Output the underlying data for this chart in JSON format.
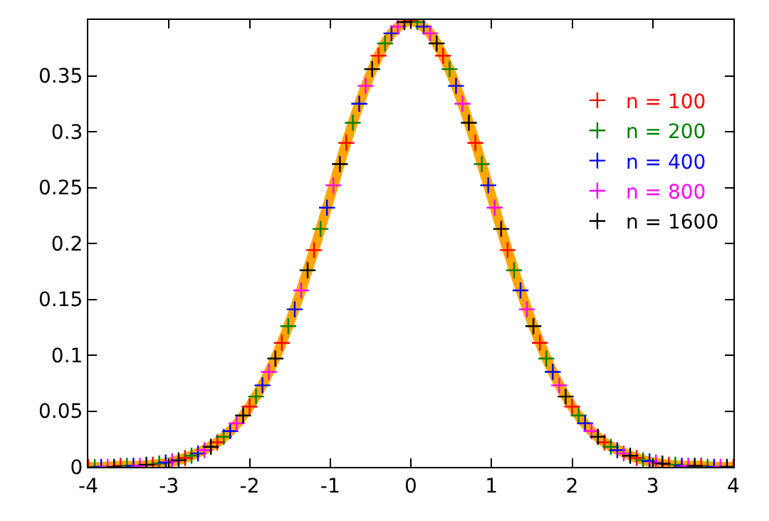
{
  "chart_data": {
    "type": "scatter",
    "x": [
      -4,
      -3.8,
      -3.6,
      -3.4,
      -3.2,
      -3,
      -2.8,
      -2.6,
      -2.4,
      -2.2,
      -2,
      -1.8,
      -1.6,
      -1.4,
      -1.2,
      -1,
      -0.8,
      -0.6,
      -0.4,
      -0.2,
      0,
      0.2,
      0.4,
      0.6,
      0.8,
      1,
      1.2,
      1.4,
      1.6,
      1.8,
      2,
      2.2,
      2.4,
      2.6,
      2.8,
      3,
      3.2,
      3.4,
      3.6,
      3.8,
      4
    ],
    "series": [
      {
        "type": "line",
        "marker": "none",
        "color": "#ffa500",
        "values": [
          0,
          0,
          0.001,
          0.001,
          0.002,
          0.004,
          0.008,
          0.014,
          0.022,
          0.035,
          0.054,
          0.079,
          0.111,
          0.15,
          0.194,
          0.242,
          0.29,
          0.333,
          0.368,
          0.391,
          0.399,
          0.391,
          0.368,
          0.333,
          0.29,
          0.242,
          0.194,
          0.15,
          0.111,
          0.079,
          0.054,
          0.035,
          0.022,
          0.014,
          0.008,
          0.004,
          0.002,
          0.001,
          0.001,
          0,
          0
        ]
      },
      {
        "name": "n = 100",
        "color": "#ff0000",
        "x": [
          -4,
          -3.6,
          -3.2,
          -2.8,
          -2.4,
          -2,
          -1.6,
          -1.2,
          -0.8,
          -0.4,
          0,
          0.4,
          0.8,
          1.2,
          1.6,
          2,
          2.4,
          2.8,
          3.2,
          3.6,
          4
        ],
        "values": [
          0,
          0.001,
          0.002,
          0.008,
          0.022,
          0.054,
          0.111,
          0.194,
          0.29,
          0.368,
          0.399,
          0.368,
          0.29,
          0.194,
          0.111,
          0.054,
          0.022,
          0.008,
          0.002,
          0.001,
          0
        ]
      },
      {
        "name": "n = 200",
        "color": "#008000",
        "x": [
          -3.92,
          -3.52,
          -3.12,
          -2.72,
          -2.32,
          -1.92,
          -1.52,
          -1.12,
          -0.72,
          -0.32,
          0.08,
          0.48,
          0.88,
          1.28,
          1.68,
          2.08,
          2.48,
          2.88,
          3.28,
          3.68
        ],
        "values": [
          0,
          0.001,
          0.003,
          0.01,
          0.027,
          0.063,
          0.126,
          0.213,
          0.308,
          0.379,
          0.398,
          0.356,
          0.271,
          0.176,
          0.097,
          0.046,
          0.018,
          0.006,
          0.002,
          0
        ]
      },
      {
        "name": "n = 400",
        "color": "#0000ff",
        "x": [
          -3.84,
          -3.44,
          -3.04,
          -2.64,
          -2.24,
          -1.84,
          -1.44,
          -1.04,
          -0.64,
          -0.24,
          0.16,
          0.56,
          0.96,
          1.36,
          1.76,
          2.16,
          2.56,
          2.96,
          3.36,
          3.76
        ],
        "values": [
          0,
          0.001,
          0.004,
          0.012,
          0.032,
          0.073,
          0.141,
          0.232,
          0.325,
          0.388,
          0.394,
          0.341,
          0.252,
          0.158,
          0.085,
          0.039,
          0.015,
          0.005,
          0.001,
          0
        ]
      },
      {
        "name": "n = 800",
        "color": "#ff00ff",
        "x": [
          -3.76,
          -3.36,
          -2.96,
          -2.56,
          -2.16,
          -1.76,
          -1.36,
          -0.96,
          -0.56,
          -0.16,
          0.24,
          0.64,
          1.04,
          1.44,
          1.84,
          2.24,
          2.64,
          3.04,
          3.44,
          3.84
        ],
        "values": [
          0,
          0.001,
          0.005,
          0.015,
          0.039,
          0.085,
          0.158,
          0.252,
          0.341,
          0.394,
          0.388,
          0.325,
          0.232,
          0.141,
          0.073,
          0.032,
          0.012,
          0.004,
          0.001,
          0
        ]
      },
      {
        "name": "n = 1600",
        "color": "#000000",
        "x": [
          -3.68,
          -3.28,
          -2.88,
          -2.48,
          -2.08,
          -1.68,
          -1.28,
          -0.88,
          -0.48,
          -0.08,
          0.32,
          0.72,
          1.12,
          1.52,
          1.92,
          2.32,
          2.72,
          3.12,
          3.52,
          3.92
        ],
        "values": [
          0,
          0.002,
          0.006,
          0.018,
          0.046,
          0.097,
          0.176,
          0.271,
          0.356,
          0.398,
          0.379,
          0.308,
          0.213,
          0.126,
          0.063,
          0.027,
          0.01,
          0.003,
          0.001,
          0
        ]
      }
    ],
    "xlim": [
      -4,
      4
    ],
    "xticks": [
      -4,
      -3,
      -2,
      -1,
      0,
      1,
      2,
      3,
      4
    ],
    "ylim": [
      0,
      0.4
    ],
    "yticks": [
      0,
      0.05,
      0.1,
      0.15,
      0.2,
      0.25,
      0.3,
      0.35
    ],
    "marker": "cross",
    "legend": "top right"
  }
}
